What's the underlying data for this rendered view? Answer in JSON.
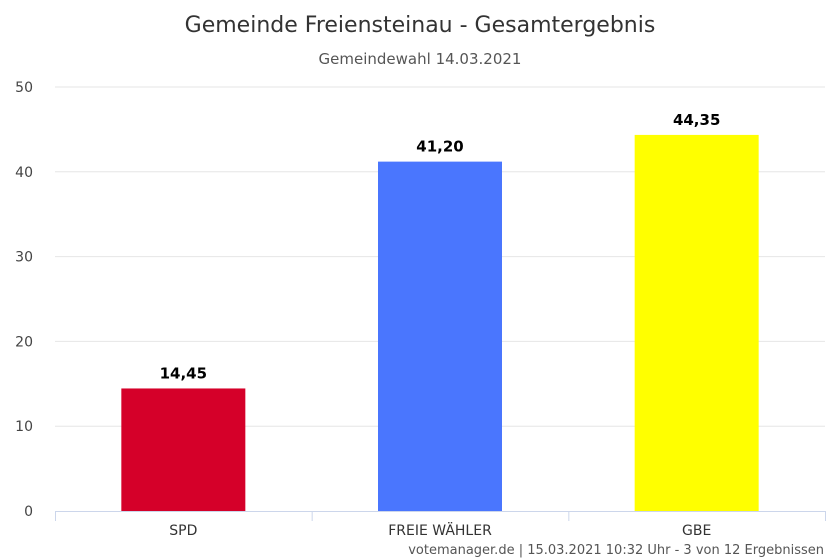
{
  "chart_data": {
    "type": "bar",
    "title": "Gemeinde Freiensteinau - Gesamtergebnis",
    "subtitle": "Gemeindewahl 14.03.2021",
    "categories": [
      "SPD",
      "FREIE WÄHLER",
      "GBE"
    ],
    "values": [
      14.45,
      41.2,
      44.35
    ],
    "data_labels": [
      "14,45",
      "41,20",
      "44,35"
    ],
    "colors": [
      "#d50029",
      "#4a76fe",
      "#ffff00"
    ],
    "yticks": [
      "0",
      "10",
      "20",
      "30",
      "40",
      "50"
    ],
    "ylim": [
      0,
      50
    ],
    "grid": true,
    "legend": false
  },
  "credits": "votemanager.de | 15.03.2021 10:32 Uhr - 3 von 12 Ergebnissen",
  "colors": {
    "grid": "#e6e6e6",
    "axis": "#ccd6eb"
  }
}
